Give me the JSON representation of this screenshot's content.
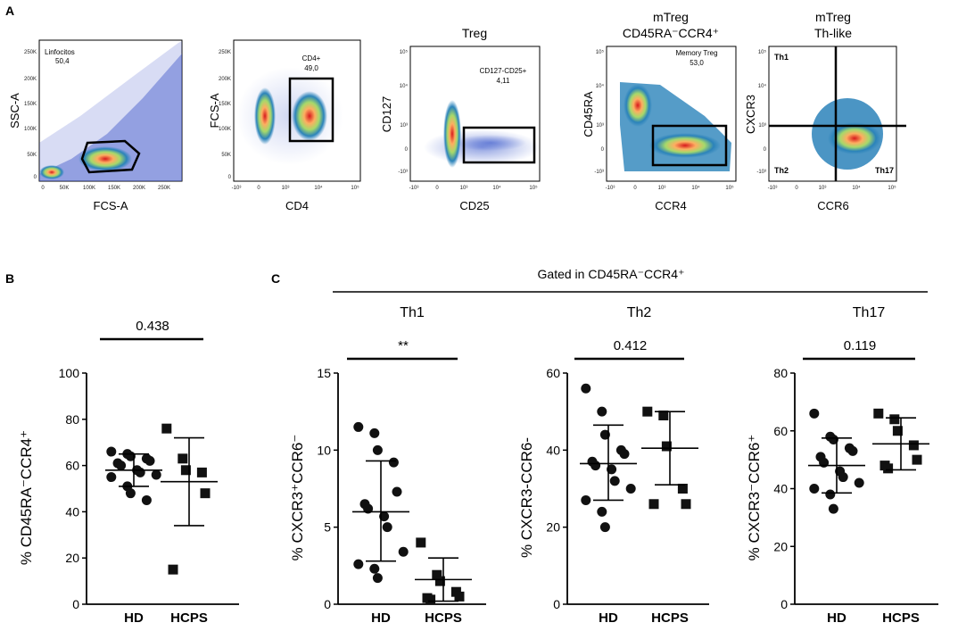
{
  "panel_labels": {
    "A": "A",
    "B": "B",
    "C": "C"
  },
  "flow": [
    {
      "title": [],
      "xlabel": "FCS-A",
      "ylabel": "SSC-A",
      "gate_label": [
        "Linfocitos",
        "50,4"
      ],
      "corner": [],
      "xticks": [
        "0",
        "50K",
        "100K",
        "150K",
        "200K",
        "250K"
      ],
      "yticks": [
        "0",
        "50K",
        "100K",
        "150K",
        "200K",
        "250K"
      ]
    },
    {
      "title": [],
      "xlabel": "CD4",
      "ylabel": "FCS-A",
      "gate_label": [
        "CD4+",
        "49,0"
      ],
      "corner": [],
      "xticks": [
        "-10³",
        "0",
        "10³",
        "10⁴",
        "10⁵"
      ],
      "yticks": [
        "0",
        "50K",
        "100K",
        "150K",
        "200K",
        "250K"
      ]
    },
    {
      "title": [
        "Treg"
      ],
      "xlabel": "CD25",
      "ylabel": "CD127",
      "gate_label": [
        "CD127-CD25+",
        "4,11"
      ],
      "corner": [],
      "xticks": [
        "-10³",
        "0",
        "10³",
        "10⁴",
        "10⁵"
      ],
      "yticks": [
        "10⁵",
        "10⁴",
        "10³",
        "0",
        "-10³"
      ]
    },
    {
      "title": [
        "mTreg",
        "CD45RA⁻CCR4⁺"
      ],
      "xlabel": "CCR4",
      "ylabel": "CD45RA",
      "gate_label": [
        "Memory Treg",
        "53,0"
      ],
      "corner": [],
      "xticks": [
        "-10³",
        "0",
        "10³",
        "10⁴",
        "10⁵"
      ],
      "yticks": [
        "10⁵",
        "10⁴",
        "10³",
        "0",
        "-10³"
      ]
    },
    {
      "title": [
        "mTreg",
        "Th-like"
      ],
      "xlabel": "CCR6",
      "ylabel": "CXCR3",
      "gate_label": [],
      "corner": [
        "Th1",
        "Th2",
        "Th17"
      ],
      "xticks": [
        "-10³",
        "0",
        "10³",
        "10⁴",
        "10⁵"
      ],
      "yticks": [
        "10⁵",
        "10⁴",
        "10³",
        "0",
        "-10³"
      ]
    }
  ],
  "gated_header": "Gated in CD45RA⁻CCR4⁺",
  "chart_data": [
    {
      "type": "scatter",
      "title": "",
      "ylabel": "% CD45RA⁻CCR4⁺",
      "ylim": [
        0,
        100
      ],
      "yticks": [
        "0",
        "20",
        "40",
        "60",
        "80",
        "100"
      ],
      "categories": [
        "HD",
        "HCPS"
      ],
      "p_value": "0.438",
      "series": [
        {
          "name": "HD",
          "marker": "circle",
          "values": [
            66,
            65,
            64,
            63,
            62,
            61,
            60,
            58,
            57,
            56,
            55,
            51,
            48,
            45
          ],
          "mean": 58,
          "sd_low": 51,
          "sd_high": 65
        },
        {
          "name": "HCPS",
          "marker": "square",
          "values": [
            76,
            63,
            58,
            57,
            48,
            15
          ],
          "mean": 53,
          "sd_low": 34,
          "sd_high": 72
        }
      ]
    },
    {
      "type": "scatter",
      "title": "Th1",
      "ylabel": "% CXCR3⁺CCR6⁻",
      "ylim": [
        0,
        15
      ],
      "yticks": [
        "0",
        "5",
        "10",
        "15"
      ],
      "categories": [
        "HD",
        "HCPS"
      ],
      "p_value": "**",
      "series": [
        {
          "name": "HD",
          "marker": "circle",
          "values": [
            11.5,
            11.1,
            10.0,
            9.2,
            7.3,
            6.5,
            6.2,
            5.7,
            5.0,
            3.4,
            2.6,
            2.3,
            1.7
          ],
          "mean": 6.0,
          "sd_low": 2.8,
          "sd_high": 9.3
        },
        {
          "name": "HCPS",
          "marker": "square",
          "values": [
            4.0,
            1.9,
            1.5,
            0.8,
            0.5,
            0.4,
            0.3
          ],
          "mean": 1.6,
          "sd_low": 0.2,
          "sd_high": 3.0
        }
      ]
    },
    {
      "type": "scatter",
      "title": "Th2",
      "ylabel": "% CXCR3-CCR6-",
      "ylim": [
        0,
        60
      ],
      "yticks": [
        "0",
        "20",
        "40",
        "60"
      ],
      "categories": [
        "HD",
        "HCPS"
      ],
      "p_value": "0.412",
      "series": [
        {
          "name": "HD",
          "marker": "circle",
          "values": [
            56,
            50,
            44,
            40,
            39,
            37,
            36,
            35,
            32,
            30,
            27,
            24,
            20
          ],
          "mean": 36.5,
          "sd_low": 27,
          "sd_high": 46.5
        },
        {
          "name": "HCPS",
          "marker": "square",
          "values": [
            50,
            49,
            41,
            30,
            26,
            26
          ],
          "mean": 40.5,
          "sd_low": 31,
          "sd_high": 50
        }
      ]
    },
    {
      "type": "scatter",
      "title": "Th17",
      "ylabel": "% CXCR3⁻CCR6⁺",
      "ylim": [
        0,
        80
      ],
      "yticks": [
        "0",
        "20",
        "40",
        "60",
        "80"
      ],
      "categories": [
        "HD",
        "HCPS"
      ],
      "p_value": "0.119",
      "series": [
        {
          "name": "HD",
          "marker": "circle",
          "values": [
            66,
            58,
            57,
            54,
            53,
            51,
            49,
            46,
            44,
            42,
            40,
            38,
            33
          ],
          "mean": 48,
          "sd_low": 38.5,
          "sd_high": 57.5
        },
        {
          "name": "HCPS",
          "marker": "square",
          "values": [
            66,
            64,
            60,
            55,
            50,
            48,
            47
          ],
          "mean": 55.5,
          "sd_low": 46.5,
          "sd_high": 64.5
        }
      ]
    }
  ]
}
